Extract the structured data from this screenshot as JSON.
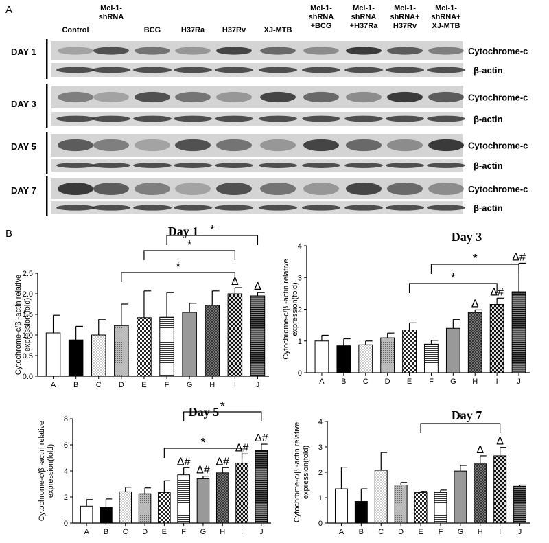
{
  "panel_a": {
    "label": "A",
    "lane_labels": [
      [
        "Control"
      ],
      [
        "Mcl-1-",
        "shRNA"
      ],
      [
        "BCG"
      ],
      [
        "H37Ra"
      ],
      [
        "H37Rv"
      ],
      [
        "XJ-MTB"
      ],
      [
        "Mcl-1-",
        "shRNA",
        "+BCG"
      ],
      [
        "Mcl-1-",
        "shRNA",
        "+H37Ra"
      ],
      [
        "Mcl-1-",
        "shRNA+",
        "H37Rv"
      ],
      [
        "Mcl-1-",
        "shRNA+",
        "XJ-MTB"
      ]
    ],
    "days": [
      "DAY 1",
      "DAY 3",
      "DAY 5",
      "DAY 7"
    ],
    "band_labels": [
      "Cytochrome-c",
      "β-actin"
    ]
  },
  "panel_b_label": "B",
  "chart_data": [
    {
      "type": "bar",
      "title": "Day 1",
      "ylabel": [
        "Cytochrome-c/β -actin relative",
        "expression(fold)"
      ],
      "categories": [
        "A",
        "B",
        "C",
        "D",
        "E",
        "F",
        "G",
        "H",
        "I",
        "J"
      ],
      "values": [
        1.05,
        0.88,
        1.0,
        1.23,
        1.42,
        1.43,
        1.55,
        1.72,
        2.0,
        1.95
      ],
      "errors": [
        0.43,
        0.33,
        0.38,
        0.52,
        0.65,
        0.6,
        0.22,
        0.35,
        0.15,
        0.08
      ],
      "ylim": [
        0,
        2.5
      ],
      "yticks": [
        {
          "value": 0,
          "label": "0.0"
        },
        0.5,
        {
          "value": 1,
          "label": "1.0"
        },
        1.5,
        {
          "value": 2,
          "label": "2.0"
        },
        2.5
      ],
      "annotations": [
        {
          "category": "I",
          "text": "Δ"
        },
        {
          "category": "J",
          "text": "Δ"
        }
      ],
      "brackets": [
        {
          "from": "D",
          "to": "I",
          "text": "*"
        },
        {
          "from": "E",
          "to": "I",
          "text": "*"
        },
        {
          "from": "F",
          "to": "J",
          "text": "*"
        }
      ]
    },
    {
      "type": "bar",
      "title": "Day 3",
      "ylabel": [
        "Cytochrome-c/β -actin relative",
        "expression(fold)"
      ],
      "categories": [
        "A",
        "B",
        "C",
        "D",
        "E",
        "F",
        "G",
        "H",
        "I",
        "J"
      ],
      "values": [
        1.0,
        0.85,
        0.88,
        1.1,
        1.35,
        0.9,
        1.4,
        1.9,
        2.15,
        2.55
      ],
      "errors": [
        0.18,
        0.22,
        0.12,
        0.15,
        0.22,
        0.12,
        0.28,
        0.08,
        0.2,
        0.9
      ],
      "ylim": [
        0,
        4
      ],
      "yticks": [
        0,
        1,
        2,
        3,
        4
      ],
      "annotations": [
        {
          "category": "H",
          "text": "Δ"
        },
        {
          "category": "I",
          "text": "Δ#"
        },
        {
          "category": "J",
          "text": "Δ#"
        }
      ],
      "brackets": [
        {
          "from": "E",
          "to": "I",
          "text": "*"
        },
        {
          "from": "F",
          "to": "J",
          "text": "*"
        }
      ]
    },
    {
      "type": "bar",
      "title": "Day 5",
      "ylabel": [
        "Cytochrome-c/β -actin relative",
        "expression(fold)"
      ],
      "categories": [
        "A",
        "B",
        "C",
        "D",
        "E",
        "F",
        "G",
        "H",
        "I",
        "J"
      ],
      "values": [
        1.3,
        1.2,
        2.4,
        2.25,
        2.35,
        3.7,
        3.4,
        3.85,
        4.6,
        5.55
      ],
      "errors": [
        0.5,
        0.65,
        0.35,
        0.45,
        0.9,
        0.55,
        0.2,
        0.4,
        0.7,
        0.5
      ],
      "ylim": [
        0,
        8
      ],
      "yticks": [
        0,
        2,
        4,
        6,
        8
      ],
      "annotations": [
        {
          "category": "F",
          "text": "Δ#"
        },
        {
          "category": "G",
          "text": "Δ#"
        },
        {
          "category": "H",
          "text": "Δ#"
        },
        {
          "category": "I",
          "text": "Δ#"
        },
        {
          "category": "J",
          "text": "Δ#"
        }
      ],
      "brackets": [
        {
          "from": "E",
          "to": "I",
          "text": "*"
        },
        {
          "from": "F",
          "to": "J",
          "text": "*"
        }
      ]
    },
    {
      "type": "bar",
      "title": "Day 7",
      "ylabel": [
        "Cytochrome-c/β -actin relative",
        "expression(fold)"
      ],
      "categories": [
        "A",
        "B",
        "C",
        "D",
        "E",
        "F",
        "G",
        "H",
        "I",
        "J"
      ],
      "values": [
        1.35,
        0.85,
        2.08,
        1.5,
        1.2,
        1.22,
        2.05,
        2.33,
        2.65,
        1.45
      ],
      "errors": [
        0.85,
        0.5,
        0.7,
        0.1,
        0.05,
        0.08,
        0.22,
        0.32,
        0.33,
        0.05
      ],
      "ylim": [
        0,
        4
      ],
      "yticks": [
        0,
        1,
        2,
        3,
        4
      ],
      "annotations": [
        {
          "category": "H",
          "text": "Δ"
        },
        {
          "category": "I",
          "text": "Δ"
        }
      ],
      "brackets": [
        {
          "from": "E",
          "to": "I",
          "text": "*"
        }
      ]
    }
  ]
}
